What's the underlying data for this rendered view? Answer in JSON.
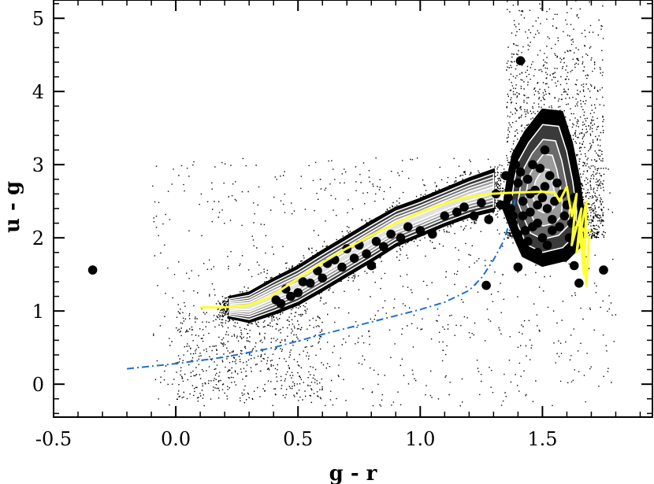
{
  "chart_data": {
    "type": "scatter",
    "title": "",
    "xlabel": "g - r",
    "ylabel": "u - g",
    "xlim": [
      -0.5,
      1.95
    ],
    "ylim": [
      -0.45,
      5.25
    ],
    "x_ticks": [
      -0.5,
      0.0,
      0.5,
      1.0,
      1.5
    ],
    "x_tick_labels": [
      "-0.5",
      "0.0",
      "0.5",
      "1.0",
      "1.5"
    ],
    "y_ticks": [
      0,
      1,
      2,
      3,
      4,
      5
    ],
    "y_tick_labels": [
      "0",
      "1",
      "2",
      "3",
      "4",
      "5"
    ],
    "grid": false,
    "legend": "none",
    "colors": {
      "points": "#000000",
      "density_levels": [
        "#000000",
        "#3a3a3a",
        "#6a6a6a",
        "#9a9a9a",
        "#c4c4c4",
        "#e2e2e2"
      ],
      "contour_line": "#ffffff",
      "mean_track": "#ffff33",
      "model_track": "#1f6fd0"
    },
    "density_ridge": [
      {
        "x": 0.22,
        "y": 1.05,
        "w": 0.14
      },
      {
        "x": 0.3,
        "y": 1.05,
        "w": 0.2
      },
      {
        "x": 0.4,
        "y": 1.2,
        "w": 0.24
      },
      {
        "x": 0.5,
        "y": 1.35,
        "w": 0.26
      },
      {
        "x": 0.6,
        "y": 1.55,
        "w": 0.27
      },
      {
        "x": 0.7,
        "y": 1.75,
        "w": 0.27
      },
      {
        "x": 0.8,
        "y": 1.95,
        "w": 0.27
      },
      {
        "x": 0.9,
        "y": 2.15,
        "w": 0.26
      },
      {
        "x": 1.0,
        "y": 2.28,
        "w": 0.25
      },
      {
        "x": 1.1,
        "y": 2.42,
        "w": 0.25
      },
      {
        "x": 1.2,
        "y": 2.55,
        "w": 0.26
      },
      {
        "x": 1.3,
        "y": 2.65,
        "w": 0.28
      }
    ],
    "density_blob": [
      [
        1.36,
        2.85
      ],
      [
        1.38,
        3.15
      ],
      [
        1.43,
        3.45
      ],
      [
        1.5,
        3.75
      ],
      [
        1.58,
        3.72
      ],
      [
        1.62,
        3.3
      ],
      [
        1.65,
        2.8
      ],
      [
        1.67,
        2.3
      ],
      [
        1.66,
        1.9
      ],
      [
        1.6,
        1.7
      ],
      [
        1.5,
        1.62
      ],
      [
        1.42,
        1.75
      ],
      [
        1.38,
        2.05
      ],
      [
        1.34,
        2.4
      ]
    ],
    "mean_track": [
      [
        0.1,
        1.05
      ],
      [
        0.2,
        1.05
      ],
      [
        0.3,
        1.08
      ],
      [
        0.38,
        1.18
      ],
      [
        0.48,
        1.4
      ],
      [
        0.58,
        1.62
      ],
      [
        0.68,
        1.82
      ],
      [
        0.78,
        2.0
      ],
      [
        0.88,
        2.17
      ],
      [
        0.98,
        2.32
      ],
      [
        1.08,
        2.45
      ],
      [
        1.18,
        2.55
      ],
      [
        1.28,
        2.6
      ],
      [
        1.4,
        2.62
      ],
      [
        1.5,
        2.63
      ],
      [
        1.55,
        2.62
      ],
      [
        1.57,
        2.5
      ],
      [
        1.6,
        2.7
      ],
      [
        1.62,
        2.3
      ],
      [
        1.64,
        2.6
      ],
      [
        1.62,
        1.9
      ],
      [
        1.66,
        2.4
      ],
      [
        1.64,
        1.8
      ],
      [
        1.68,
        2.5
      ],
      [
        1.67,
        1.5
      ],
      [
        1.65,
        2.2
      ],
      [
        1.69,
        2.0
      ],
      [
        1.68,
        1.35
      ],
      [
        1.66,
        2.1
      ],
      [
        1.7,
        2.1
      ]
    ],
    "model_track": [
      [
        -0.2,
        0.21
      ],
      [
        0.0,
        0.28
      ],
      [
        0.2,
        0.37
      ],
      [
        0.4,
        0.5
      ],
      [
        0.6,
        0.68
      ],
      [
        0.8,
        0.85
      ],
      [
        1.0,
        1.02
      ],
      [
        1.1,
        1.12
      ],
      [
        1.2,
        1.28
      ],
      [
        1.25,
        1.45
      ],
      [
        1.3,
        1.7
      ],
      [
        1.34,
        1.95
      ],
      [
        1.37,
        2.25
      ],
      [
        1.39,
        2.55
      ]
    ],
    "large_points": {
      "x": [
        -0.34,
        0.41,
        0.43,
        0.45,
        0.47,
        0.5,
        0.52,
        0.55,
        0.58,
        0.6,
        0.62,
        0.65,
        0.68,
        0.7,
        0.73,
        0.75,
        0.78,
        0.8,
        0.82,
        0.85,
        0.88,
        0.92,
        0.95,
        1.0,
        1.05,
        1.1,
        1.15,
        1.18,
        1.22,
        1.25,
        1.28,
        1.31,
        1.33,
        1.35,
        1.37,
        1.38,
        1.4,
        1.41,
        1.42,
        1.43,
        1.44,
        1.45,
        1.46,
        1.47,
        1.48,
        1.49,
        1.5,
        1.51,
        1.52,
        1.53,
        1.54,
        1.55,
        1.56,
        1.57,
        1.58,
        1.59,
        1.6,
        1.61,
        1.62,
        1.63,
        1.4,
        1.42,
        1.44,
        1.46,
        1.48,
        1.5,
        1.52,
        1.54,
        1.38,
        1.36,
        1.39,
        1.27,
        1.4,
        1.63,
        1.65,
        1.75,
        1.45,
        1.48,
        1.51,
        1.41
      ],
      "y": [
        1.56,
        1.15,
        1.1,
        1.3,
        1.2,
        1.25,
        1.4,
        1.38,
        1.55,
        1.45,
        1.65,
        1.7,
        1.6,
        1.85,
        1.72,
        1.9,
        1.78,
        1.62,
        1.95,
        1.88,
        2.05,
        2.0,
        2.15,
        2.1,
        2.05,
        2.3,
        2.35,
        2.42,
        2.3,
        2.48,
        2.25,
        2.6,
        2.45,
        2.85,
        2.4,
        2.2,
        2.75,
        2.9,
        2.5,
        2.1,
        2.8,
        2.35,
        3.0,
        2.65,
        2.2,
        2.95,
        2.55,
        2.7,
        2.4,
        2.85,
        2.25,
        2.5,
        2.75,
        2.15,
        2.6,
        2.3,
        2.45,
        2.0,
        2.2,
        2.55,
        2.05,
        2.3,
        1.95,
        2.15,
        1.8,
        2.0,
        1.9,
        2.1,
        2.3,
        2.55,
        3.0,
        1.35,
        1.6,
        1.62,
        1.38,
        1.56,
        2.6,
        2.45,
        3.2,
        4.42
      ]
    }
  }
}
